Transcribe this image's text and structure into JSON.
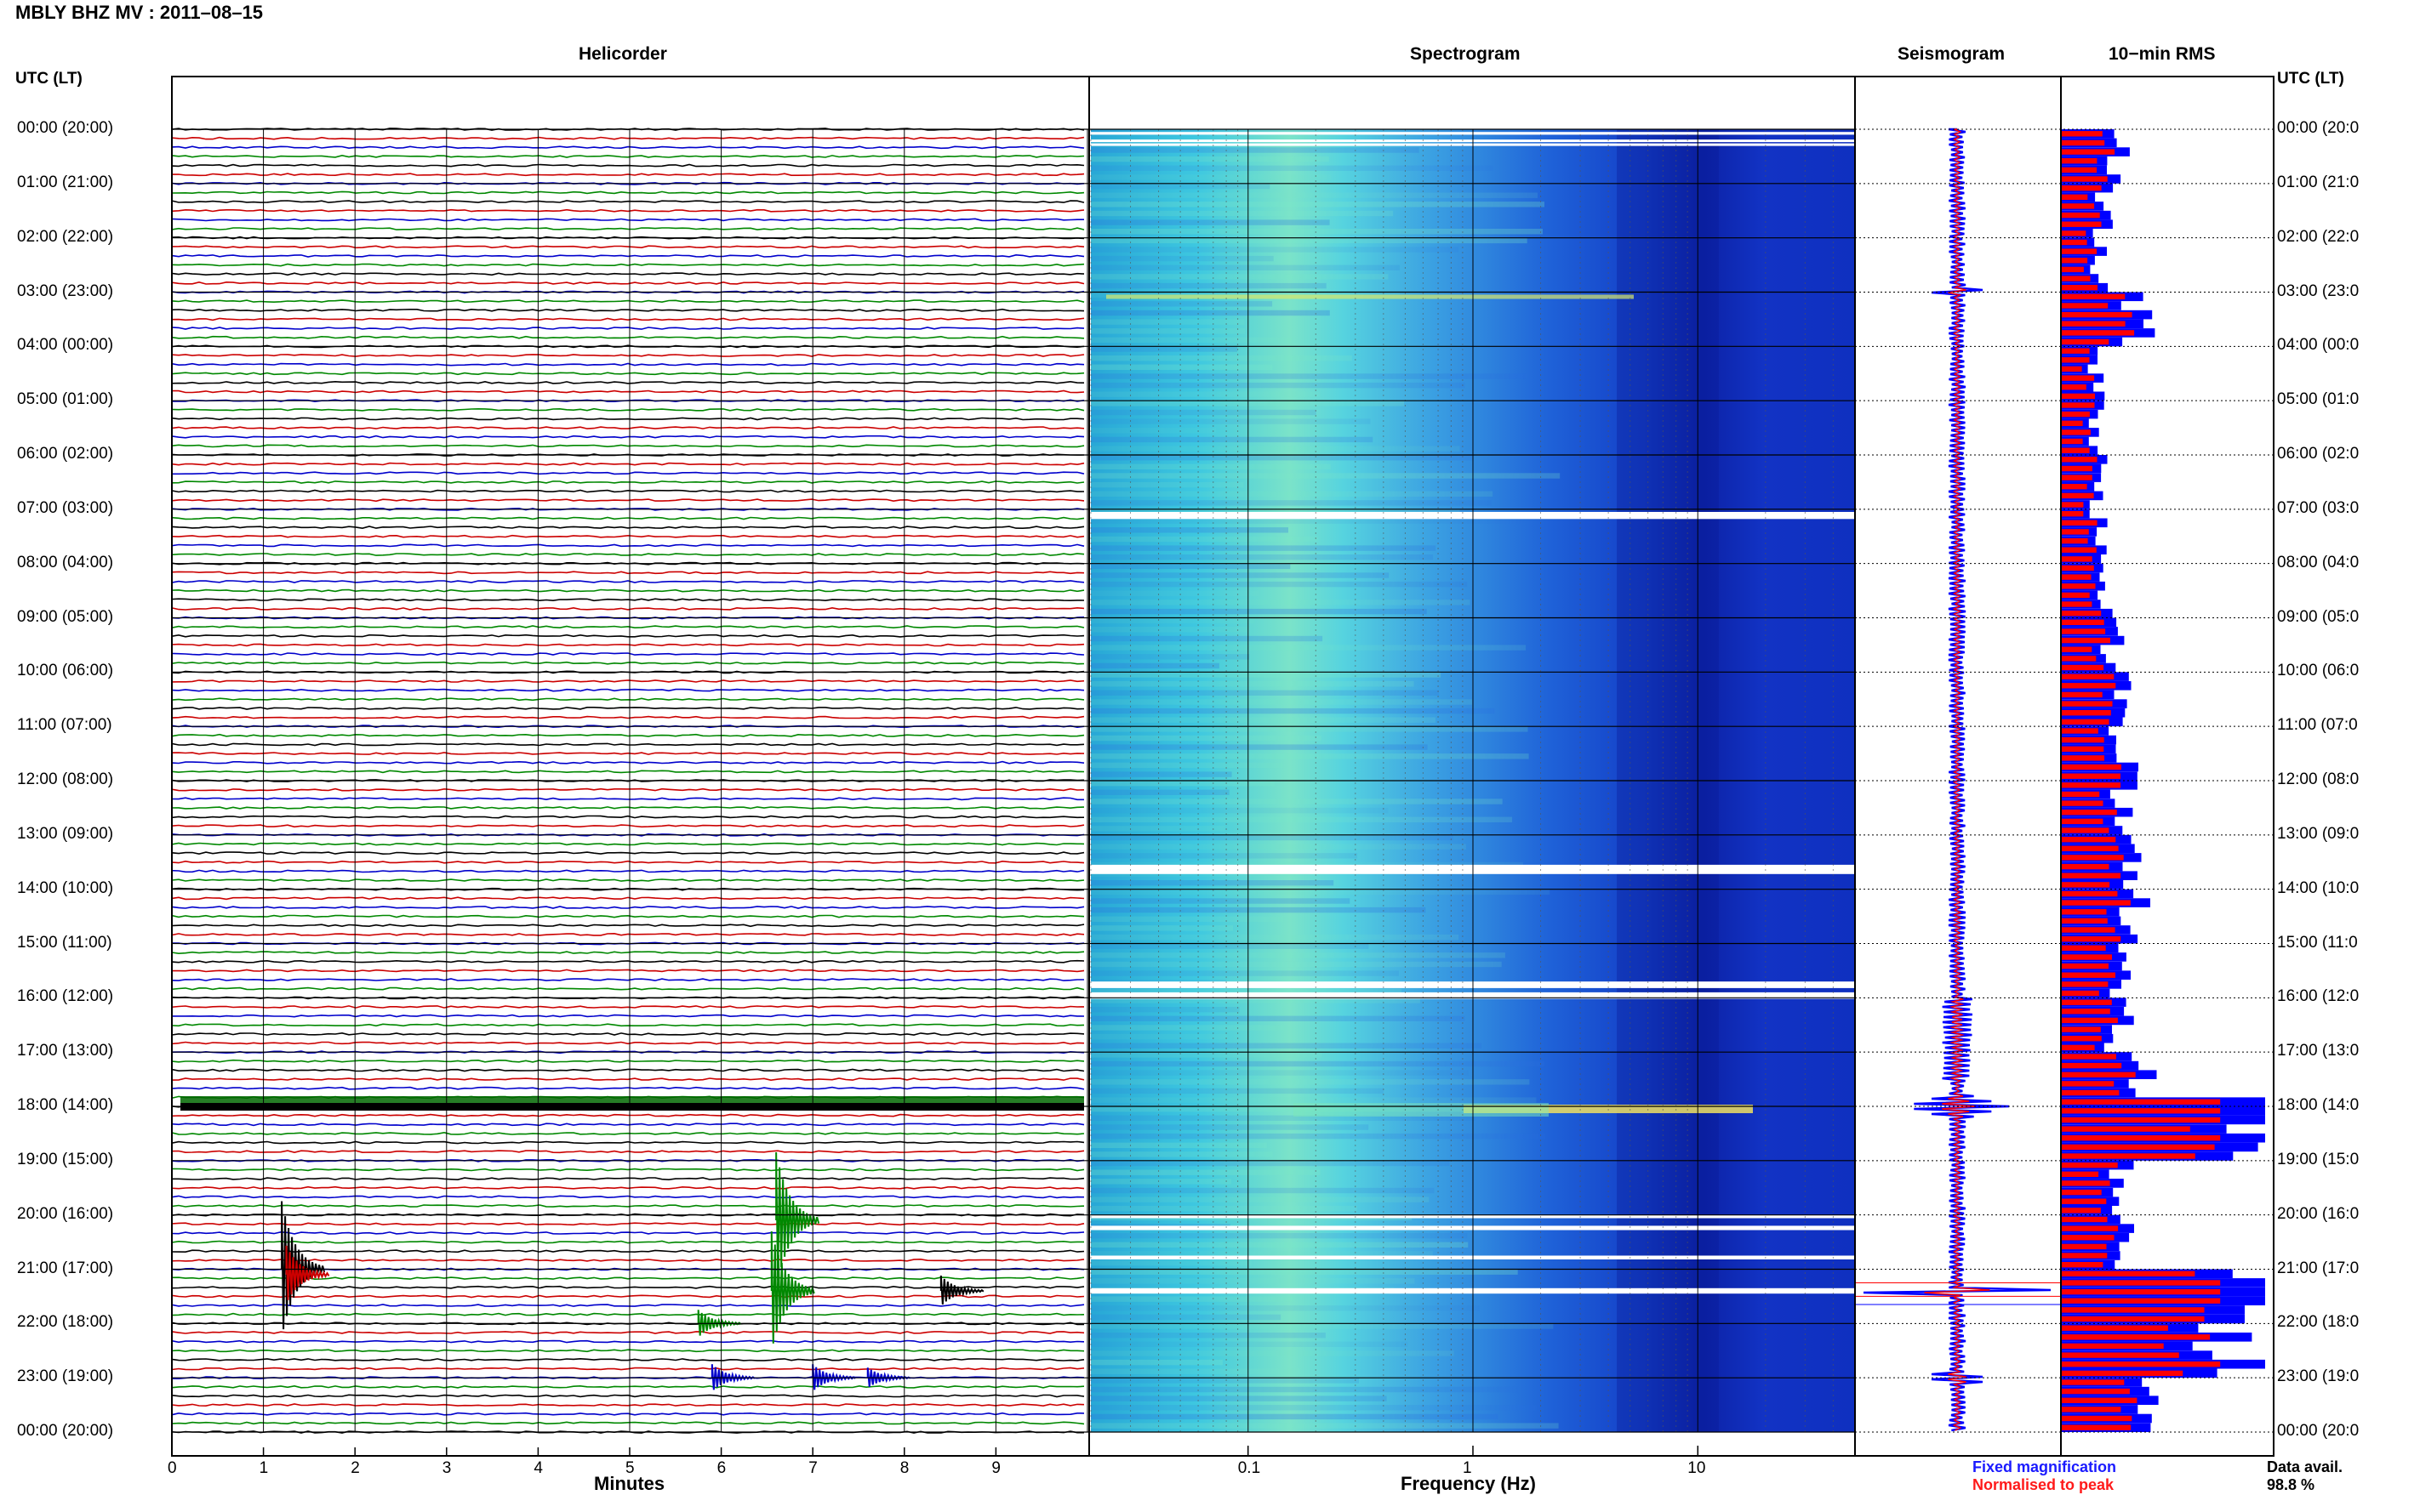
{
  "page": {
    "title": "MBLY BHZ MV : 2011–08–15",
    "utc_label_left": "UTC (LT)",
    "utc_label_right": "UTC (LT)"
  },
  "panels": {
    "helicorder": "Helicorder",
    "spectrogram": "Spectrogram",
    "seismogram": "Seismogram",
    "rms": "10−min RMS"
  },
  "axes": {
    "helicorder_xlabel": "Minutes",
    "spectrogram_xlabel": "Frequency (Hz)",
    "minute_ticks": [
      "0",
      "1",
      "2",
      "3",
      "4",
      "5",
      "6",
      "7",
      "8",
      "9"
    ],
    "freq_ticks": [
      "0.1",
      "1",
      "10"
    ]
  },
  "time_labels_left": [
    "00:00 (20:00)",
    "01:00 (21:00)",
    "02:00 (22:00)",
    "03:00 (23:00)",
    "04:00 (00:00)",
    "05:00 (01:00)",
    "06:00 (02:00)",
    "07:00 (03:00)",
    "08:00 (04:00)",
    "09:00 (05:00)",
    "10:00 (06:00)",
    "11:00 (07:00)",
    "12:00 (08:00)",
    "13:00 (09:00)",
    "14:00 (10:00)",
    "15:00 (11:00)",
    "16:00 (12:00)",
    "17:00 (13:00)",
    "18:00 (14:00)",
    "19:00 (15:00)",
    "20:00 (16:00)",
    "21:00 (17:00)",
    "22:00 (18:00)",
    "23:00 (19:00)",
    "00:00 (20:00)"
  ],
  "time_labels_right": [
    "00:00 (20:0",
    "01:00 (21:0",
    "02:00 (22:0",
    "03:00 (23:0",
    "04:00 (00:0",
    "05:00 (01:0",
    "06:00 (02:0",
    "07:00 (03:0",
    "08:00 (04:0",
    "09:00 (05:0",
    "10:00 (06:0",
    "11:00 (07:0",
    "12:00 (08:0",
    "13:00 (09:0",
    "14:00 (10:0",
    "15:00 (11:0",
    "16:00 (12:0",
    "17:00 (13:0",
    "18:00 (14:0",
    "19:00 (15:0",
    "20:00 (16:0",
    "21:00 (17:0",
    "22:00 (18:0",
    "23:00 (19:0",
    "00:00 (20:0"
  ],
  "legend": {
    "fixed": "Fixed magnification",
    "normalised": "Normalised to peak",
    "data_avail_label": "Data avail.",
    "data_avail_value": "98.8 %"
  },
  "colors": {
    "trace_cycle": [
      "#000000",
      "#cc0000",
      "#0000cc",
      "#008800"
    ],
    "fixed": "#0000ff",
    "normalised": "#ff0000",
    "grid": "#000000"
  },
  "chart_data": {
    "type": "heatmap",
    "components": [
      "helicorder",
      "spectrogram",
      "seismogram",
      "rms"
    ],
    "helicorder_lines_per_hour": 6,
    "minutes_per_line": 10,
    "freq_range_hz": [
      0.02,
      50
    ],
    "freq_scale": "log",
    "rms_hourly_relative": [
      0.3,
      0.22,
      0.2,
      0.42,
      0.18,
      0.18,
      0.2,
      0.19,
      0.22,
      0.26,
      0.3,
      0.32,
      0.33,
      0.38,
      0.4,
      0.33,
      0.3,
      0.4,
      1.0,
      0.3,
      0.3,
      1.0,
      0.85,
      0.45,
      0.3
    ],
    "events_utc": [
      "18:00",
      "21:00",
      "21:30"
    ]
  }
}
